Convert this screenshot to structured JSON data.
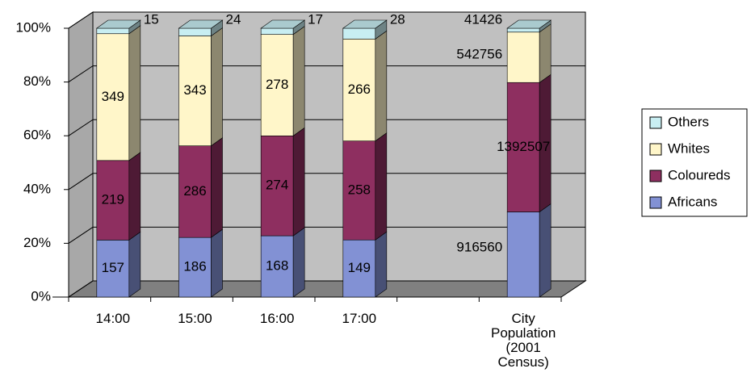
{
  "chart_data": {
    "type": "bar",
    "stacking": "percent",
    "categories": [
      "14:00",
      "15:00",
      "16:00",
      "17:00",
      null,
      "City Population (2001 Census)"
    ],
    "series": [
      {
        "name": "Africans",
        "color": "#8291d4",
        "values": [
          157,
          186,
          168,
          149,
          null,
          916560
        ]
      },
      {
        "name": "Coloureds",
        "color": "#8e2f60",
        "values": [
          219,
          286,
          274,
          258,
          null,
          1392507
        ]
      },
      {
        "name": "Whites",
        "color": "#fff6c9",
        "values": [
          349,
          343,
          278,
          266,
          null,
          542756
        ]
      },
      {
        "name": "Others",
        "color": "#c8eef2",
        "values": [
          15,
          24,
          17,
          28,
          null,
          41426
        ]
      }
    ],
    "ylim": [
      0,
      100
    ],
    "yticks": [
      {
        "value": 0,
        "label": "0%"
      },
      {
        "value": 20,
        "label": "20%"
      },
      {
        "value": 40,
        "label": "40%"
      },
      {
        "value": 60,
        "label": "60%"
      },
      {
        "value": 80,
        "label": "80%"
      },
      {
        "value": 100,
        "label": "100%"
      }
    ],
    "grid": true,
    "legend": "right"
  }
}
